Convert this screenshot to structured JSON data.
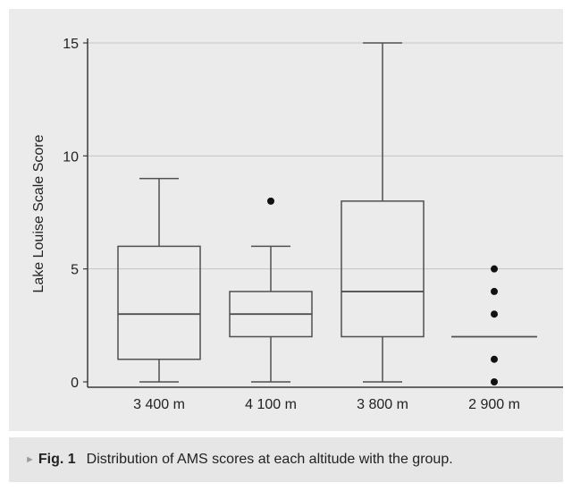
{
  "chart_data": {
    "type": "boxplot",
    "ylabel": "Lake Louise Scale Score",
    "ylim": [
      0,
      16
    ],
    "yticks": [
      0,
      5,
      10,
      15
    ],
    "grid": true,
    "categories": [
      "3 400 m",
      "4 100 m",
      "3 800 m",
      "2 900 m"
    ],
    "boxes": [
      {
        "category": "3 400 m",
        "whisker_low": 0,
        "q1": 1,
        "median": 3,
        "q3": 6,
        "whisker_high": 9,
        "outliers": []
      },
      {
        "category": "4 100 m",
        "whisker_low": 0,
        "q1": 2,
        "median": 3,
        "q3": 4,
        "whisker_high": 6,
        "outliers": [
          8
        ]
      },
      {
        "category": "3 800 m",
        "whisker_low": 0,
        "q1": 2,
        "median": 4,
        "q3": 8,
        "whisker_high": 15,
        "outliers": []
      },
      {
        "category": "2 900 m",
        "whisker_low": 2,
        "q1": 2,
        "median": 2,
        "q3": 2,
        "whisker_high": 2,
        "outliers": [
          0,
          1,
          3,
          4,
          5
        ]
      }
    ]
  },
  "caption": {
    "marker": "►",
    "figure_number": "Fig. 1",
    "text": "Distribution of AMS scores at each altitude with the group."
  }
}
